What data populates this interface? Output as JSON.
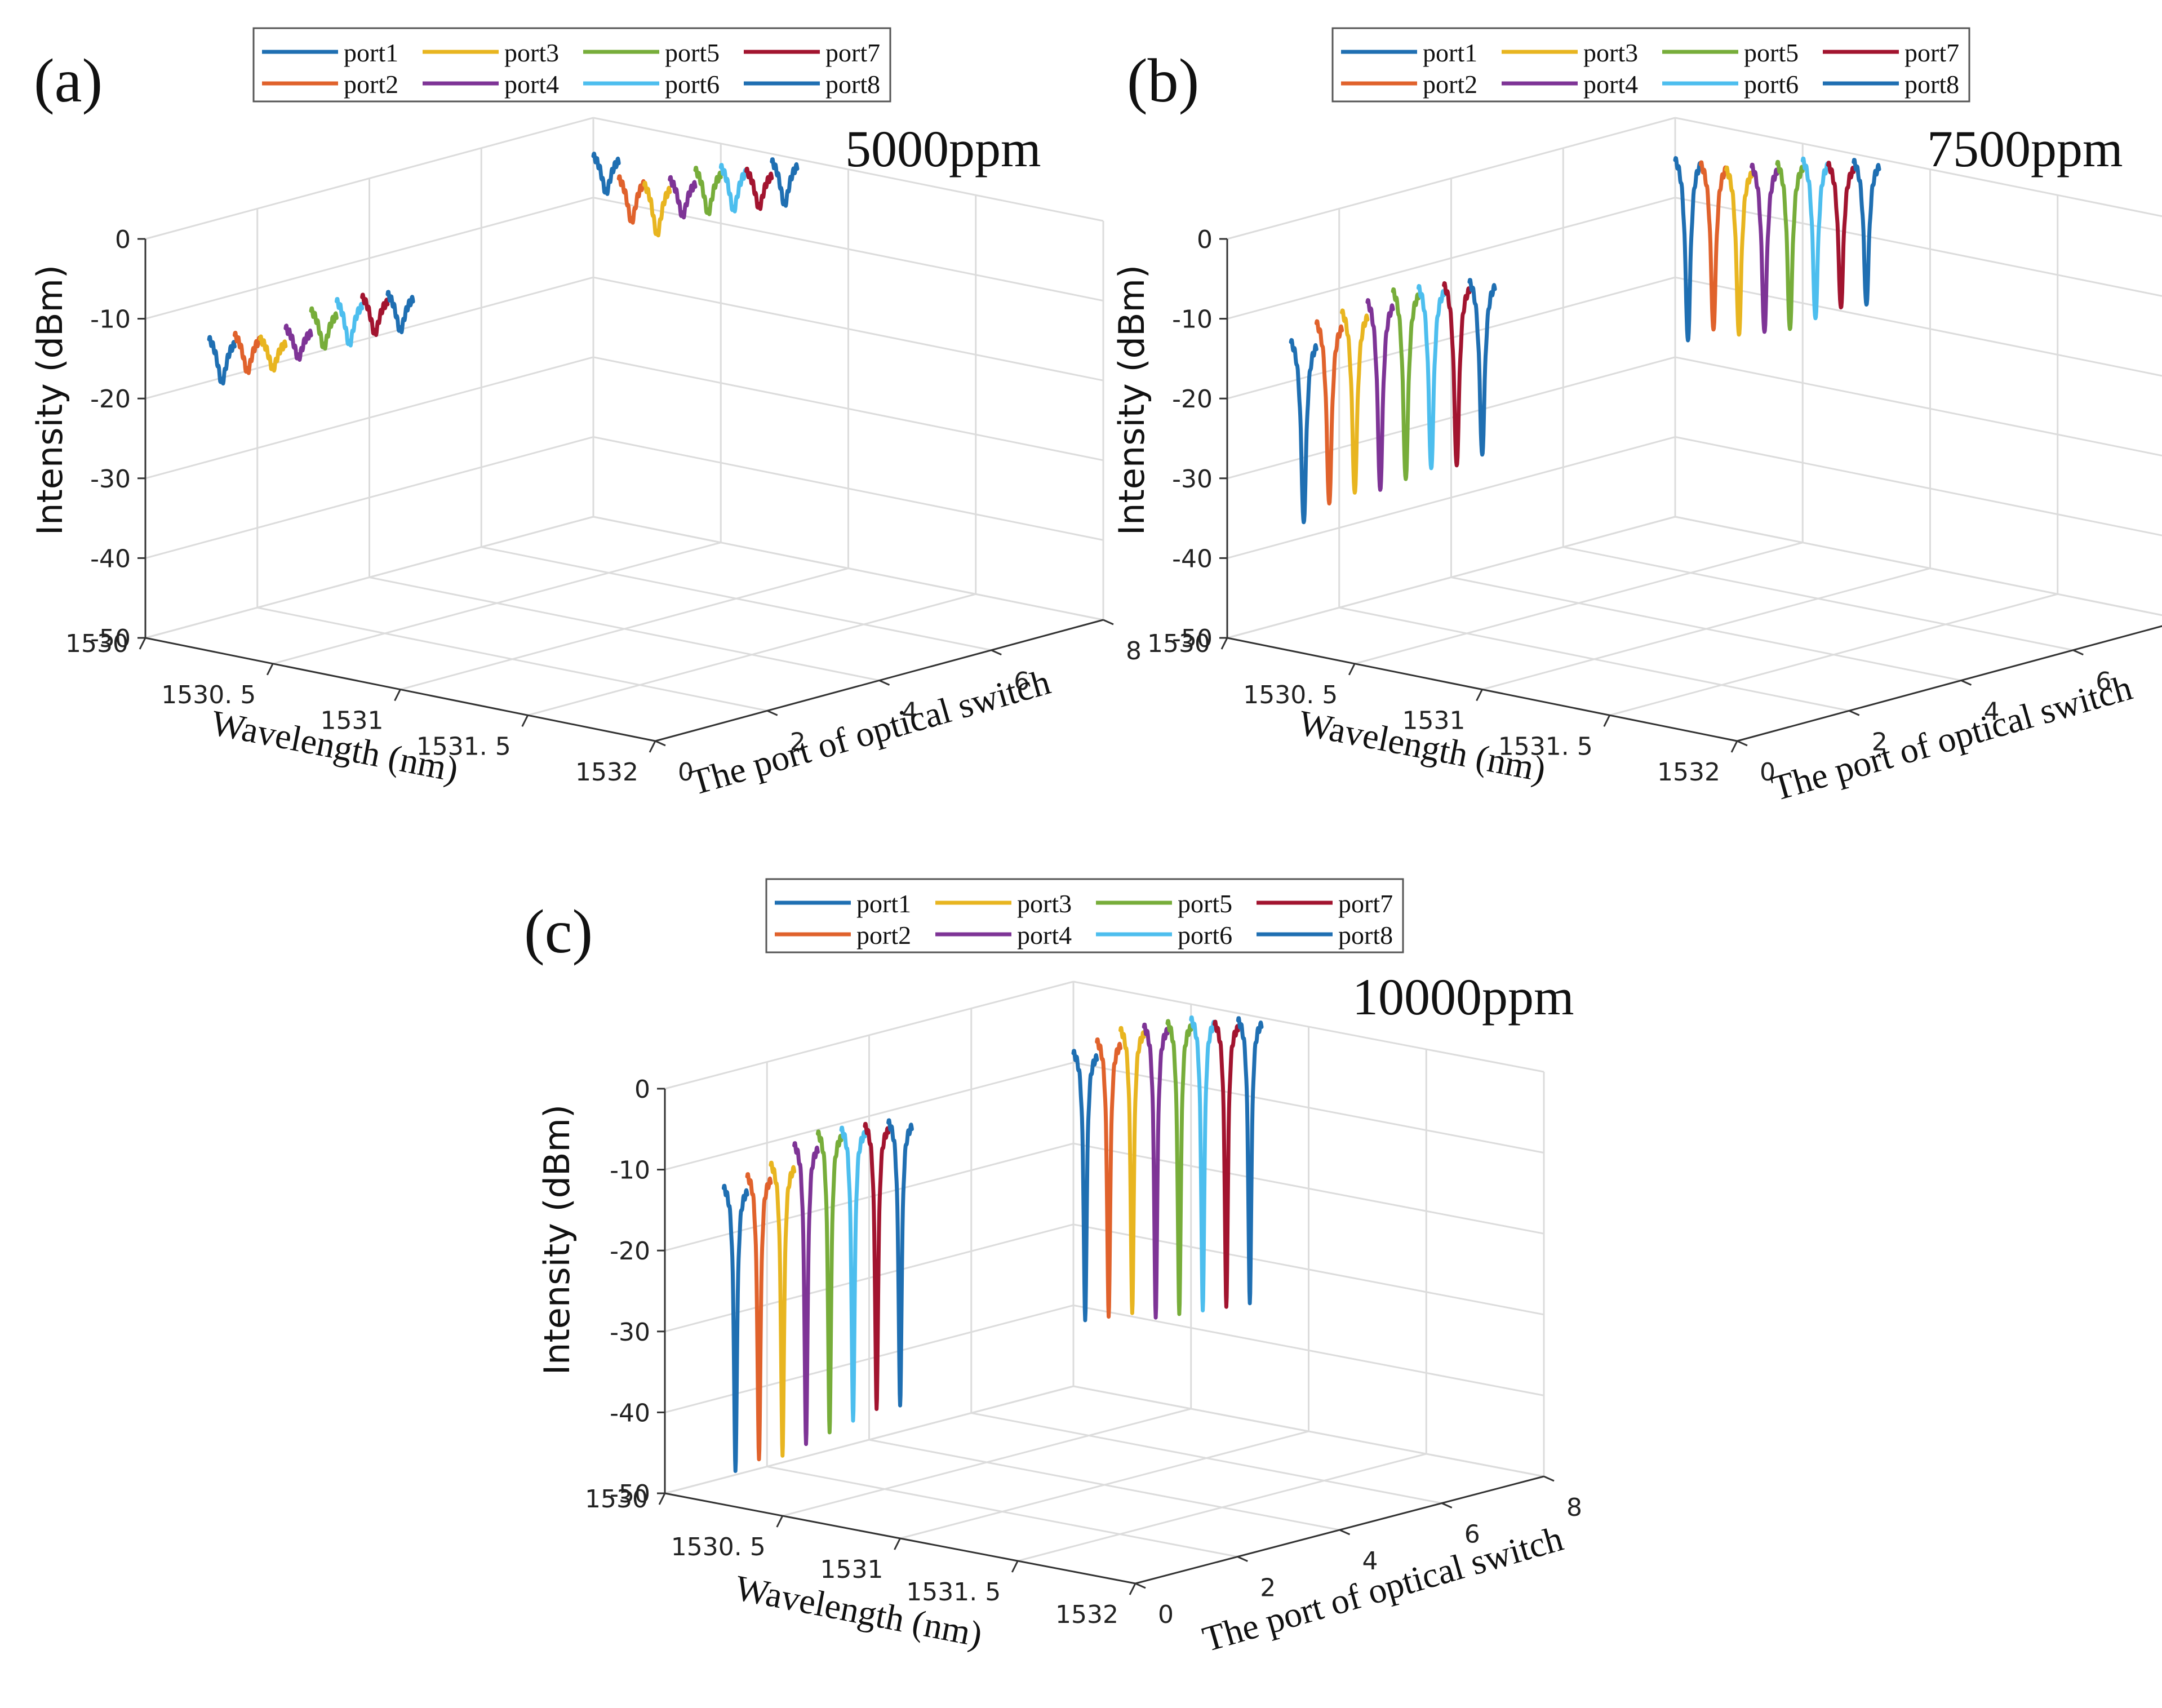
{
  "figure": {
    "legend_entries": [
      "port1",
      "port2",
      "port3",
      "port4",
      "port5",
      "port6",
      "port7",
      "port8"
    ],
    "legend_colors": [
      "#1f6fb2",
      "#e0622c",
      "#e8b520",
      "#7e3496",
      "#77ad3a",
      "#4dbeee",
      "#a2142f",
      "#1f6fb2"
    ],
    "z_axis_label": "Intensity (dBm)",
    "x_axis_label": "Wavelength (nm)",
    "y_axis_label": "The port of optical switch",
    "z_ticks": [
      "0",
      "-10",
      "-20",
      "-30",
      "-40",
      "-50"
    ],
    "x_ticks": [
      "1530",
      "1530. 5",
      "1531",
      "1531. 5",
      "1532"
    ],
    "y_ticks": [
      "0",
      "2",
      "4",
      "6",
      "8"
    ]
  },
  "chart_data": [
    {
      "type": "line",
      "panel_label": "(a)",
      "concentration": "5000ppm",
      "zlim": [
        -50,
        0
      ],
      "xlim": [
        1530,
        1532
      ],
      "ylim": [
        0,
        8
      ],
      "series": [
        {
          "name": "port1",
          "front": {
            "baseline": -10,
            "dip_min": -16
          },
          "back": {
            "baseline": -4,
            "dip_min": -9
          }
        },
        {
          "name": "port2",
          "front": {
            "baseline": -9,
            "dip_min": -14
          },
          "back": {
            "baseline": -6,
            "dip_min": -12
          }
        },
        {
          "name": "port3",
          "front": {
            "baseline": -9,
            "dip_min": -13
          },
          "back": {
            "baseline": -6,
            "dip_min": -13
          }
        },
        {
          "name": "port4",
          "front": {
            "baseline": -7,
            "dip_min": -11
          },
          "back": {
            "baseline": -5,
            "dip_min": -10
          }
        },
        {
          "name": "port5",
          "front": {
            "baseline": -4,
            "dip_min": -9
          },
          "back": {
            "baseline": -3,
            "dip_min": -9
          }
        },
        {
          "name": "port6",
          "front": {
            "baseline": -2,
            "dip_min": -8
          },
          "back": {
            "baseline": -2,
            "dip_min": -8
          }
        },
        {
          "name": "port7",
          "front": {
            "baseline": -1,
            "dip_min": -6
          },
          "back": {
            "baseline": -2,
            "dip_min": -7
          }
        },
        {
          "name": "port8",
          "front": {
            "baseline": 0,
            "dip_min": -5
          },
          "back": {
            "baseline": 0,
            "dip_min": -6
          }
        }
      ]
    },
    {
      "type": "line",
      "panel_label": "(b)",
      "concentration": "7500ppm",
      "zlim": [
        -50,
        0
      ],
      "xlim": [
        1530,
        1532
      ],
      "ylim": [
        0,
        8
      ],
      "series": [
        {
          "name": "port1",
          "front": {
            "baseline": -10,
            "dip_min": -34
          },
          "back": {
            "baseline": -4,
            "dip_min": -28
          }
        },
        {
          "name": "port2",
          "front": {
            "baseline": -7,
            "dip_min": -31
          },
          "back": {
            "baseline": -4,
            "dip_min": -26
          }
        },
        {
          "name": "port3",
          "front": {
            "baseline": -5,
            "dip_min": -29
          },
          "back": {
            "baseline": -4,
            "dip_min": -26
          }
        },
        {
          "name": "port4",
          "front": {
            "baseline": -3,
            "dip_min": -28
          },
          "back": {
            "baseline": -3,
            "dip_min": -25
          }
        },
        {
          "name": "port5",
          "front": {
            "baseline": -1,
            "dip_min": -26
          },
          "back": {
            "baseline": -2,
            "dip_min": -24
          }
        },
        {
          "name": "port6",
          "front": {
            "baseline": 0,
            "dip_min": -24
          },
          "back": {
            "baseline": -1,
            "dip_min": -22
          }
        },
        {
          "name": "port7",
          "front": {
            "baseline": 1,
            "dip_min": -23
          },
          "back": {
            "baseline": -1,
            "dip_min": -20
          }
        },
        {
          "name": "port8",
          "front": {
            "baseline": 2,
            "dip_min": -21
          },
          "back": {
            "baseline": 0,
            "dip_min": -19
          }
        }
      ]
    },
    {
      "type": "line",
      "panel_label": "(c)",
      "concentration": "10000ppm",
      "zlim": [
        -50,
        0
      ],
      "xlim": [
        1530,
        1532
      ],
      "ylim": [
        0,
        8
      ],
      "series": [
        {
          "name": "port1",
          "front": {
            "baseline": -10,
            "dip_min": -46
          },
          "back": {
            "baseline": -8,
            "dip_min": -42
          }
        },
        {
          "name": "port2",
          "front": {
            "baseline": -8,
            "dip_min": -44
          },
          "back": {
            "baseline": -6,
            "dip_min": -41
          }
        },
        {
          "name": "port3",
          "front": {
            "baseline": -6,
            "dip_min": -43
          },
          "back": {
            "baseline": -4,
            "dip_min": -40
          }
        },
        {
          "name": "port4",
          "front": {
            "baseline": -3,
            "dip_min": -41
          },
          "back": {
            "baseline": -3,
            "dip_min": -40
          }
        },
        {
          "name": "port5",
          "front": {
            "baseline": -1,
            "dip_min": -39
          },
          "back": {
            "baseline": -2,
            "dip_min": -39
          }
        },
        {
          "name": "port6",
          "front": {
            "baseline": 0,
            "dip_min": -37
          },
          "back": {
            "baseline": -1,
            "dip_min": -38
          }
        },
        {
          "name": "port7",
          "front": {
            "baseline": 1,
            "dip_min": -35
          },
          "back": {
            "baseline": -1,
            "dip_min": -37
          }
        },
        {
          "name": "port8",
          "front": {
            "baseline": 2,
            "dip_min": -34
          },
          "back": {
            "baseline": 0,
            "dip_min": -36
          }
        }
      ]
    }
  ]
}
